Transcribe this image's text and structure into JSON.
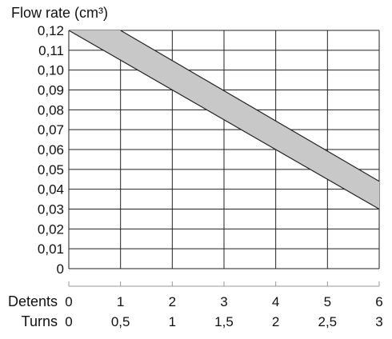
{
  "chart_data": {
    "type": "area",
    "title": "Flow rate (cm³)",
    "xlabel_primary": "Detents",
    "xlabel_secondary": "Turns",
    "x": [
      0,
      1,
      2,
      3,
      4,
      5,
      6
    ],
    "x_tick_labels": [
      "0",
      "1",
      "2",
      "3",
      "4",
      "5",
      "6"
    ],
    "x_secondary_tick_labels": [
      "0",
      "0,5",
      "1",
      "1,5",
      "2",
      "2,5",
      "3"
    ],
    "ylim": [
      0,
      0.12
    ],
    "y_ticks": [
      0,
      0.01,
      0.02,
      0.03,
      0.04,
      0.05,
      0.06,
      0.07,
      0.08,
      0.09,
      0.1,
      0.11,
      0.12
    ],
    "y_tick_labels": [
      "0",
      "0,01",
      "0,02",
      "0,03",
      "0,04",
      "0,05",
      "0,06",
      "0,07",
      "0,08",
      "0,09",
      "0,10",
      "0,11",
      "0,12"
    ],
    "band": {
      "upper": {
        "x": [
          1,
          6
        ],
        "y": [
          0.12,
          0.044
        ]
      },
      "lower": {
        "x": [
          0,
          6
        ],
        "y": [
          0.12,
          0.03
        ]
      }
    },
    "grid": true,
    "colors": {
      "band_fill": "#c8c8c8",
      "line": "#222222",
      "grid": "#222222"
    }
  }
}
